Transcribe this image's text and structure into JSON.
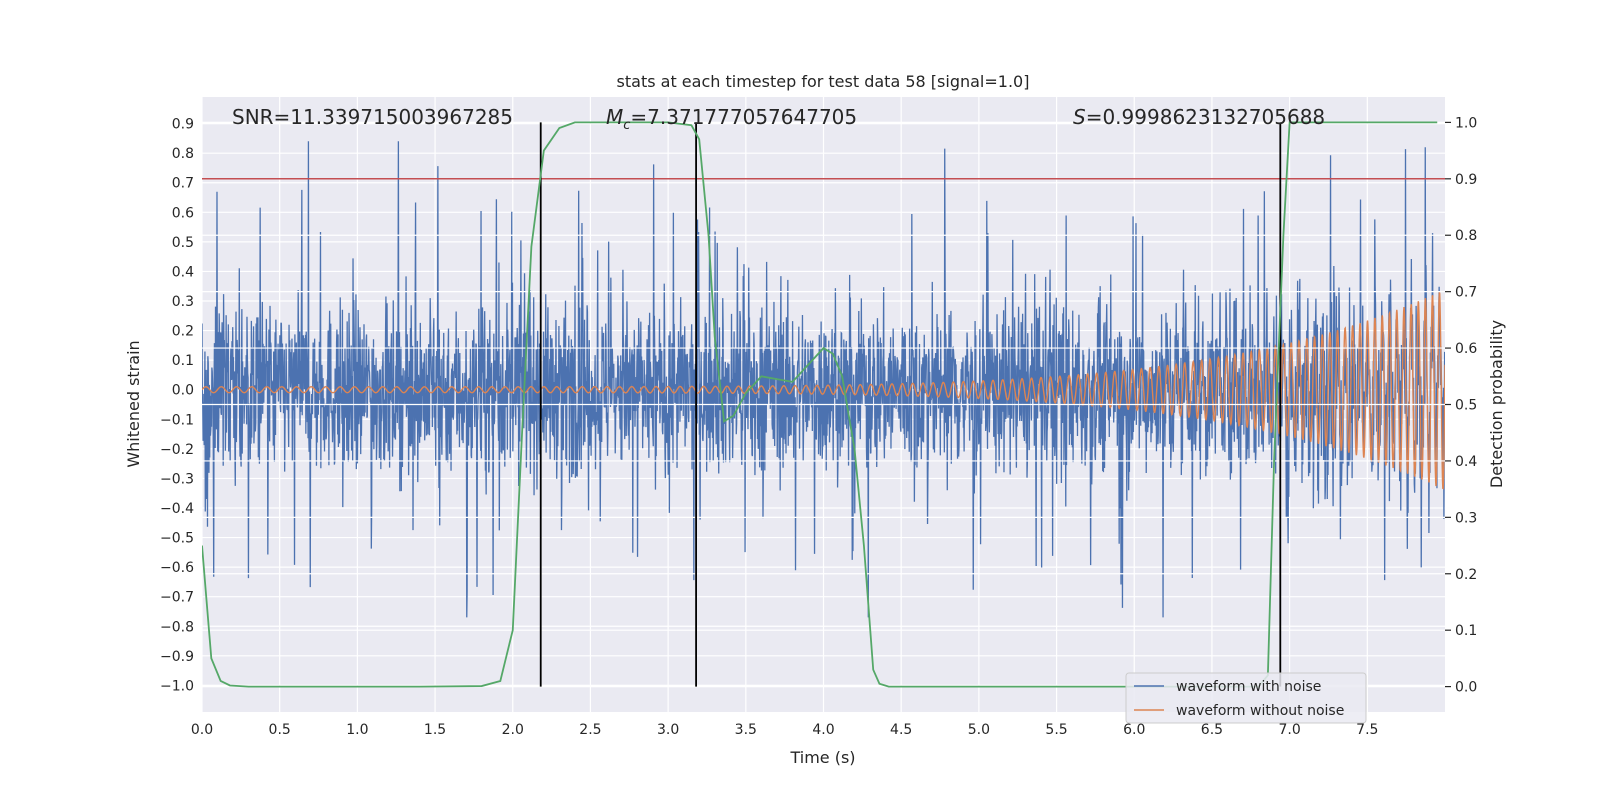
{
  "chart_data": {
    "type": "line",
    "title": "stats at each timestep for test data 58 [signal=1.0]",
    "xlabel": "Time (s)",
    "ylabel": "Whitened strain",
    "y2label": "Detection probability",
    "xlim": [
      0.0,
      8.0
    ],
    "ylim": [
      -1.09,
      0.99
    ],
    "y2lim": [
      -0.045,
      1.045
    ],
    "x_ticks": [
      0.0,
      0.5,
      1.0,
      1.5,
      2.0,
      2.5,
      3.0,
      3.5,
      4.0,
      4.5,
      5.0,
      5.5,
      6.0,
      6.5,
      7.0,
      7.5
    ],
    "x_tick_labels": [
      "0.0",
      "0.5",
      "1.0",
      "1.5",
      "2.0",
      "2.5",
      "3.0",
      "3.5",
      "4.0",
      "4.5",
      "5.0",
      "5.5",
      "6.0",
      "6.5",
      "7.0",
      "7.5"
    ],
    "y_ticks": [
      0.9,
      0.8,
      0.7,
      0.6,
      0.5,
      0.4,
      0.3,
      0.2,
      0.1,
      0.0,
      -0.1,
      -0.2,
      -0.3,
      -0.4,
      -0.5,
      -0.6,
      -0.7,
      -0.8,
      -0.9,
      -1.0
    ],
    "y_tick_labels": [
      "0.9",
      "0.8",
      "0.7",
      "0.6",
      "0.5",
      "0.4",
      "0.3",
      "0.2",
      "0.1",
      "0.0",
      "−0.1",
      "−0.2",
      "−0.3",
      "−0.4",
      "−0.5",
      "−0.6",
      "−0.7",
      "−0.8",
      "−0.9",
      "−1.0"
    ],
    "y2_ticks": [
      1.0,
      0.9,
      0.8,
      0.7,
      0.6,
      0.5,
      0.4,
      0.3,
      0.2,
      0.1,
      0.0
    ],
    "y2_tick_labels": [
      "1.0",
      "0.9",
      "0.8",
      "0.7",
      "0.6",
      "0.5",
      "0.4",
      "0.3",
      "0.2",
      "0.1",
      "0.0"
    ],
    "annotations": {
      "snr": "SNR=11.339715003967285",
      "mc_symbol": "M",
      "mc_sub": "c",
      "mc_value": "=7.371777057647705",
      "s_symbol": "S",
      "s_value": "=0.9998623132705688"
    },
    "threshold_prob": 0.9,
    "vertical_lines_x": [
      2.18,
      3.18,
      6.94
    ],
    "series": [
      {
        "name": "waveform with noise",
        "color": "#4c72b0",
        "noise_amplitude": 0.18,
        "peak_max": 0.89,
        "peak_min": -0.77,
        "x_range": [
          0.0,
          8.0
        ]
      },
      {
        "name": "waveform without noise",
        "color": "#dd8452",
        "chirp_start_amplitude": 0.01,
        "chirp_end_amplitude": 0.34,
        "x_range": [
          0.0,
          8.0
        ]
      },
      {
        "name": "detection probability",
        "color": "#55a868",
        "axis": "right",
        "x": [
          0.0,
          0.06,
          0.12,
          0.18,
          0.3,
          0.6,
          1.0,
          1.4,
          1.8,
          1.92,
          2.0,
          2.06,
          2.12,
          2.2,
          2.3,
          2.4,
          2.55,
          2.8,
          3.0,
          3.15,
          3.2,
          3.26,
          3.3,
          3.36,
          3.42,
          3.5,
          3.6,
          3.7,
          3.8,
          3.9,
          4.0,
          4.06,
          4.12,
          4.2,
          4.26,
          4.32,
          4.36,
          4.42,
          4.6,
          5.0,
          5.5,
          6.0,
          6.5,
          6.8,
          6.86,
          6.9,
          6.96,
          7.0,
          7.05,
          7.3,
          7.6,
          7.95
        ],
        "y": [
          0.25,
          0.05,
          0.01,
          0.002,
          0.0,
          0.0,
          0.0,
          0.0,
          0.001,
          0.01,
          0.1,
          0.45,
          0.78,
          0.95,
          0.99,
          1.0,
          1.0,
          1.0,
          1.0,
          0.995,
          0.97,
          0.8,
          0.62,
          0.47,
          0.48,
          0.52,
          0.55,
          0.545,
          0.54,
          0.57,
          0.6,
          0.59,
          0.55,
          0.42,
          0.25,
          0.03,
          0.005,
          0.0,
          0.0,
          0.0,
          0.0,
          0.0,
          0.0,
          0.0,
          0.02,
          0.4,
          0.8,
          1.0,
          1.0,
          1.0,
          1.0,
          1.0
        ]
      }
    ],
    "legend_location": "lower right",
    "colors": {
      "background": "#eaeaf2",
      "grid": "#ffffff",
      "threshold": "#c44e52",
      "vline": "#000000"
    }
  }
}
